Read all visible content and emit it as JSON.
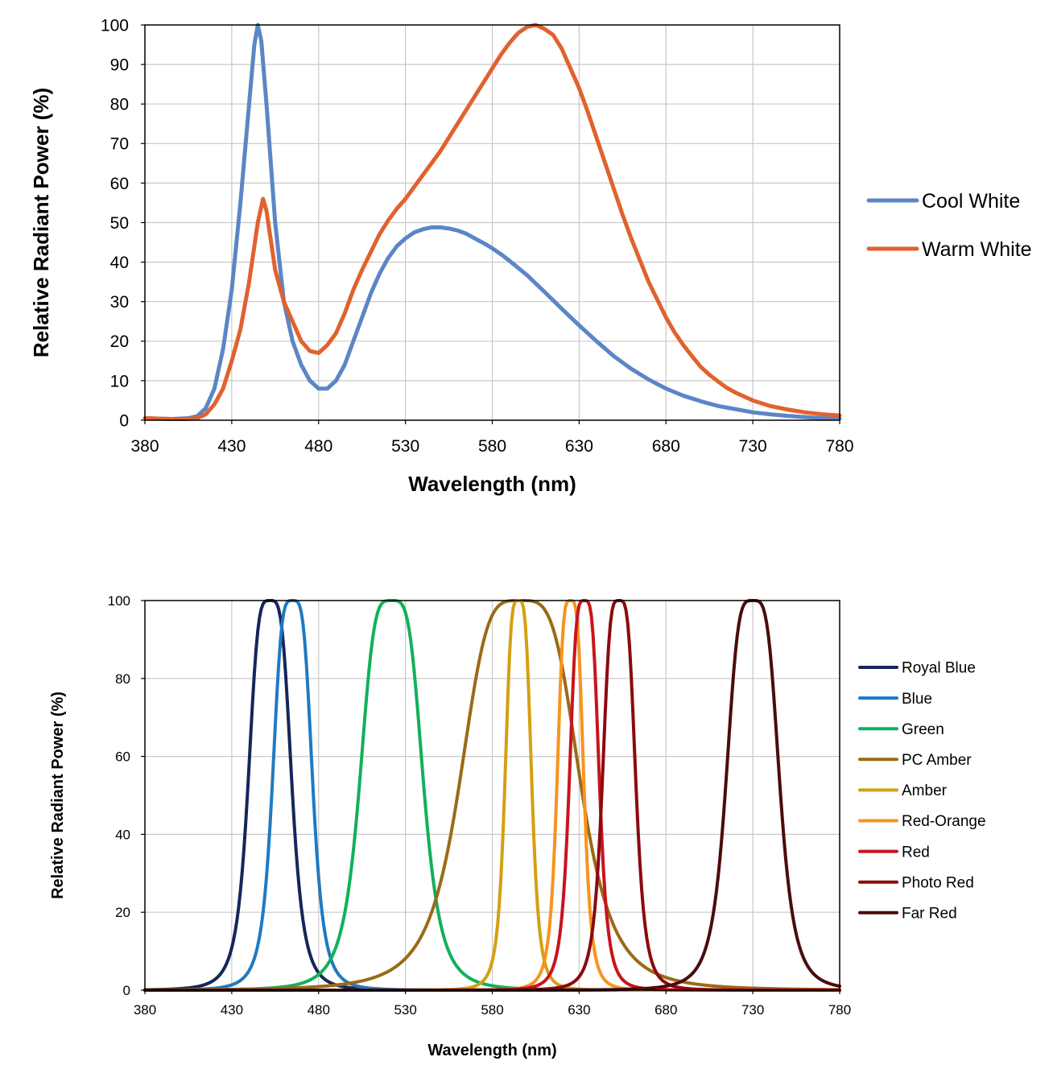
{
  "chart_data": [
    {
      "type": "line",
      "xlabel": "Wavelength (nm)",
      "ylabel": "Relative Radiant Power (%)",
      "xlim": [
        380,
        780
      ],
      "ylim": [
        0,
        100
      ],
      "xticks": [
        380,
        430,
        480,
        530,
        580,
        630,
        680,
        730,
        780
      ],
      "yticks": [
        0,
        10,
        20,
        30,
        40,
        50,
        60,
        70,
        80,
        90,
        100
      ],
      "grid": true,
      "legend": "right",
      "series": [
        {
          "name": "Cool White",
          "color": "#5b86c6",
          "points": [
            [
              380,
              0.5
            ],
            [
              395,
              0.3
            ],
            [
              405,
              0.5
            ],
            [
              410,
              1
            ],
            [
              415,
              3
            ],
            [
              420,
              8
            ],
            [
              425,
              18
            ],
            [
              430,
              33
            ],
            [
              435,
              55
            ],
            [
              440,
              80
            ],
            [
              443,
              95
            ],
            [
              445,
              100
            ],
            [
              447,
              96
            ],
            [
              450,
              80
            ],
            [
              455,
              50
            ],
            [
              460,
              30
            ],
            [
              465,
              20
            ],
            [
              470,
              14
            ],
            [
              475,
              10
            ],
            [
              480,
              8
            ],
            [
              485,
              8
            ],
            [
              490,
              10
            ],
            [
              495,
              14
            ],
            [
              500,
              20
            ],
            [
              505,
              26
            ],
            [
              510,
              32
            ],
            [
              515,
              37
            ],
            [
              520,
              41
            ],
            [
              525,
              44
            ],
            [
              530,
              46
            ],
            [
              535,
              47.5
            ],
            [
              540,
              48.3
            ],
            [
              545,
              48.8
            ],
            [
              550,
              48.8
            ],
            [
              555,
              48.5
            ],
            [
              560,
              48
            ],
            [
              565,
              47.2
            ],
            [
              570,
              46
            ],
            [
              575,
              44.8
            ],
            [
              580,
              43.5
            ],
            [
              585,
              42
            ],
            [
              590,
              40.3
            ],
            [
              595,
              38.5
            ],
            [
              600,
              36.7
            ],
            [
              610,
              32.5
            ],
            [
              620,
              28.2
            ],
            [
              630,
              24
            ],
            [
              640,
              20
            ],
            [
              650,
              16.2
            ],
            [
              660,
              13
            ],
            [
              670,
              10.3
            ],
            [
              680,
              8
            ],
            [
              690,
              6.2
            ],
            [
              700,
              4.8
            ],
            [
              710,
              3.6
            ],
            [
              720,
              2.8
            ],
            [
              730,
              2
            ],
            [
              740,
              1.5
            ],
            [
              750,
              1.1
            ],
            [
              760,
              0.8
            ],
            [
              770,
              0.5
            ],
            [
              780,
              0.4
            ]
          ]
        },
        {
          "name": "Warm White",
          "color": "#e0622e",
          "points": [
            [
              380,
              0.5
            ],
            [
              395,
              0.3
            ],
            [
              405,
              0.3
            ],
            [
              410,
              0.5
            ],
            [
              415,
              1.5
            ],
            [
              420,
              4
            ],
            [
              425,
              8
            ],
            [
              430,
              15
            ],
            [
              435,
              23
            ],
            [
              440,
              35
            ],
            [
              445,
              50
            ],
            [
              448,
              56
            ],
            [
              450,
              53
            ],
            [
              455,
              38
            ],
            [
              460,
              30
            ],
            [
              465,
              25
            ],
            [
              470,
              20
            ],
            [
              475,
              17.5
            ],
            [
              480,
              17
            ],
            [
              485,
              19
            ],
            [
              490,
              22
            ],
            [
              495,
              27
            ],
            [
              500,
              33
            ],
            [
              505,
              38
            ],
            [
              510,
              42.5
            ],
            [
              515,
              47
            ],
            [
              520,
              50.5
            ],
            [
              525,
              53.5
            ],
            [
              530,
              56
            ],
            [
              535,
              59
            ],
            [
              540,
              62
            ],
            [
              545,
              65
            ],
            [
              550,
              68
            ],
            [
              555,
              71.5
            ],
            [
              560,
              75
            ],
            [
              565,
              78.5
            ],
            [
              570,
              82
            ],
            [
              575,
              85.5
            ],
            [
              580,
              89
            ],
            [
              585,
              92.5
            ],
            [
              590,
              95.5
            ],
            [
              595,
              98
            ],
            [
              600,
              99.5
            ],
            [
              605,
              100
            ],
            [
              610,
              99
            ],
            [
              615,
              97.5
            ],
            [
              620,
              94
            ],
            [
              625,
              89
            ],
            [
              630,
              84
            ],
            [
              635,
              78
            ],
            [
              640,
              71.5
            ],
            [
              645,
              65
            ],
            [
              650,
              58.5
            ],
            [
              655,
              52
            ],
            [
              660,
              46
            ],
            [
              665,
              40.5
            ],
            [
              670,
              35
            ],
            [
              675,
              30.5
            ],
            [
              680,
              26
            ],
            [
              685,
              22.2
            ],
            [
              690,
              19
            ],
            [
              695,
              16.2
            ],
            [
              700,
              13.5
            ],
            [
              705,
              11.5
            ],
            [
              710,
              9.8
            ],
            [
              715,
              8.2
            ],
            [
              720,
              7
            ],
            [
              725,
              6
            ],
            [
              730,
              5
            ],
            [
              740,
              3.6
            ],
            [
              750,
              2.7
            ],
            [
              760,
              2
            ],
            [
              770,
              1.5
            ],
            [
              780,
              1.2
            ]
          ]
        }
      ]
    },
    {
      "type": "line",
      "xlabel": "Wavelength (nm)",
      "ylabel": "Relative Radiant Power (%)",
      "xlim": [
        380,
        780
      ],
      "ylim": [
        0,
        100
      ],
      "xticks": [
        380,
        430,
        480,
        530,
        580,
        630,
        680,
        730,
        780
      ],
      "yticks": [
        0,
        20,
        40,
        60,
        80,
        100
      ],
      "grid": true,
      "legend": "right",
      "series": [
        {
          "name": "Royal Blue",
          "color": "#14275a",
          "peak": 452,
          "width": 13
        },
        {
          "name": "Blue",
          "color": "#1f7ac2",
          "peak": 465,
          "width": 12
        },
        {
          "name": "Green",
          "color": "#12b05a",
          "peak": 522,
          "width": 19
        },
        {
          "name": "PC Amber",
          "color": "#9a6a16",
          "peak": 596,
          "width": 36
        },
        {
          "name": "Amber",
          "color": "#d4a011",
          "peak": 595,
          "width": 8
        },
        {
          "name": "Red-Orange",
          "color": "#f7941d",
          "peak": 625,
          "width": 8
        },
        {
          "name": "Red",
          "color": "#c8141e",
          "peak": 633,
          "width": 9
        },
        {
          "name": "Photo Red",
          "color": "#8b0a0e",
          "peak": 653,
          "width": 10
        },
        {
          "name": "Far Red",
          "color": "#4a0c0c",
          "peak": 730,
          "width": 16
        }
      ]
    }
  ]
}
